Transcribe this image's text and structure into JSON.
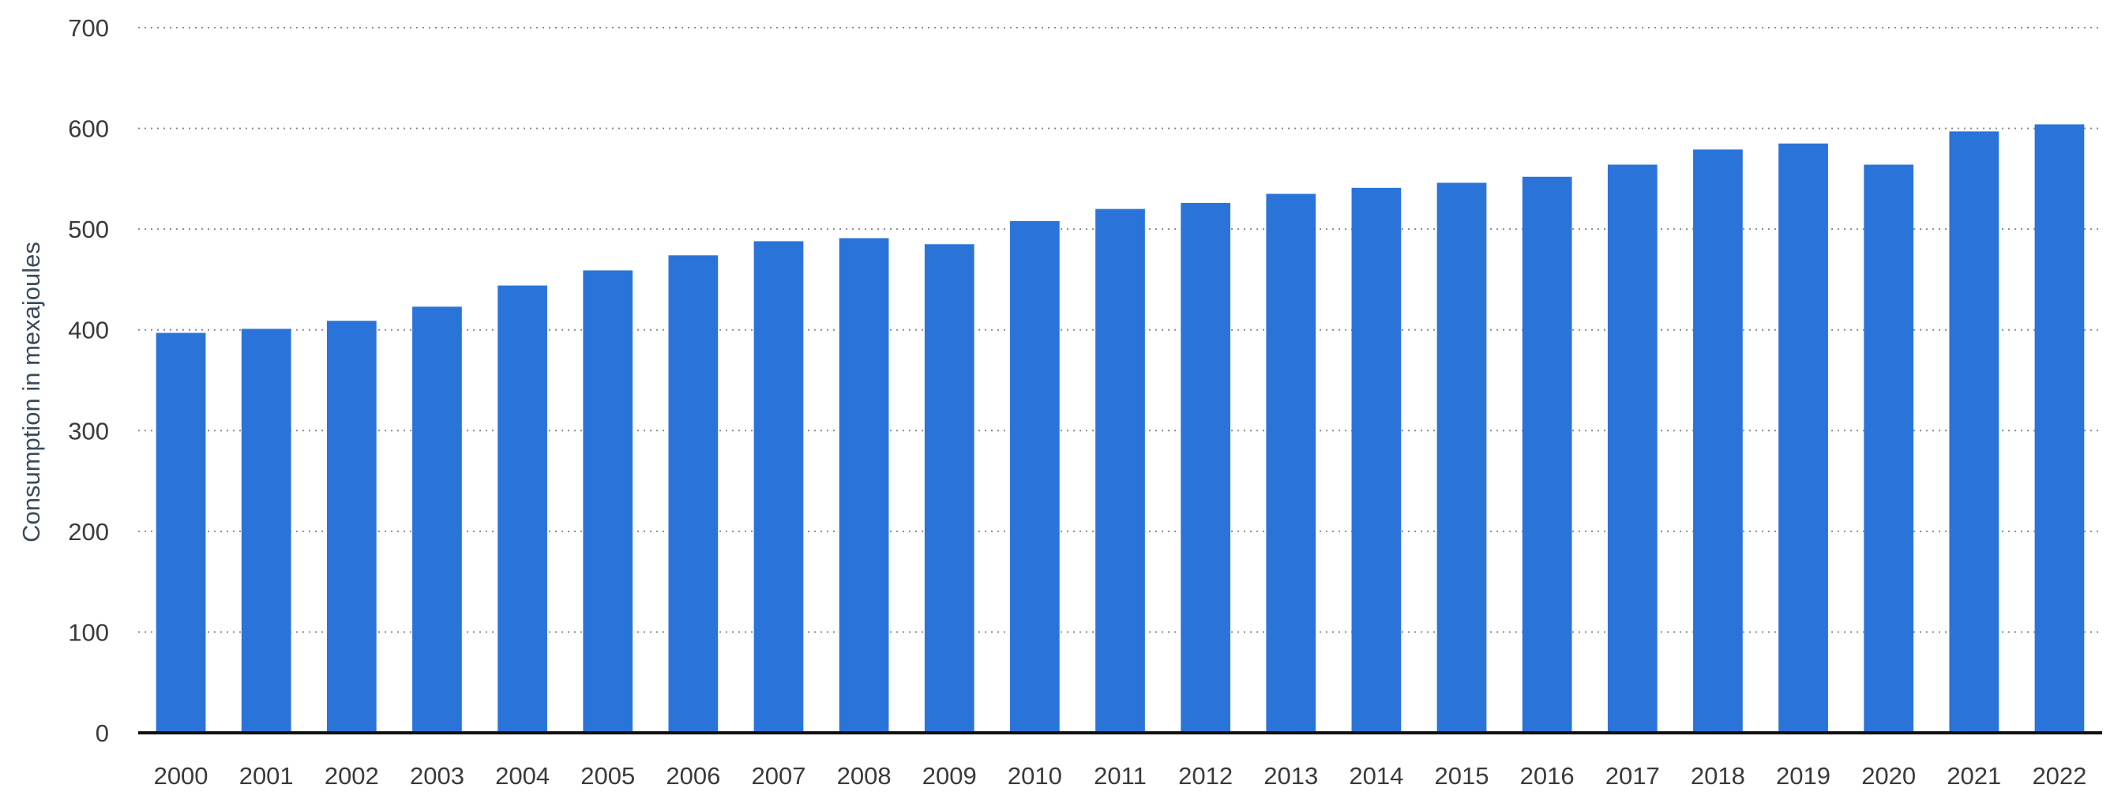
{
  "chart_data": {
    "type": "bar",
    "title": "",
    "xlabel": "",
    "ylabel": "Consumption in mexajoules",
    "ylim": [
      0,
      700
    ],
    "yticks": [
      0,
      100,
      200,
      300,
      400,
      500,
      600,
      700
    ],
    "grid": true,
    "categories": [
      "2000",
      "2001",
      "2002",
      "2003",
      "2004",
      "2005",
      "2006",
      "2007",
      "2008",
      "2009",
      "2010",
      "2011",
      "2012",
      "2013",
      "2014",
      "2015",
      "2016",
      "2017",
      "2018",
      "2019",
      "2020",
      "2021",
      "2022"
    ],
    "values": [
      397,
      401,
      409,
      423,
      444,
      459,
      474,
      488,
      491,
      485,
      508,
      520,
      526,
      535,
      541,
      546,
      552,
      564,
      579,
      585,
      564,
      597,
      604
    ],
    "bar_color": "#2a74d9"
  }
}
